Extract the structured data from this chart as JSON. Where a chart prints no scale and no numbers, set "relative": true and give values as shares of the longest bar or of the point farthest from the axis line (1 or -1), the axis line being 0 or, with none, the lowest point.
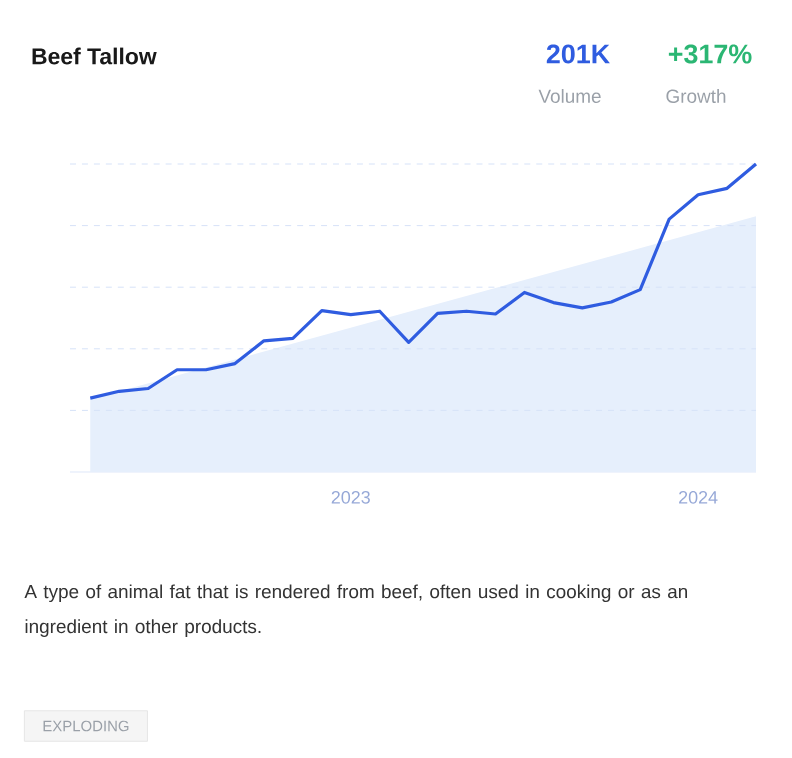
{
  "chart_data": {
    "type": "line",
    "title": "Beef Tallow",
    "relative": true,
    "grid": "y",
    "x": [
      "2022-04",
      "2022-05",
      "2022-06",
      "2022-07",
      "2022-08",
      "2022-09",
      "2022-10",
      "2022-11",
      "2022-12",
      "2023-01",
      "2023-02",
      "2023-03",
      "2023-04",
      "2023-05",
      "2023-06",
      "2023-07",
      "2023-08",
      "2023-09",
      "2023-10",
      "2023-11",
      "2023-12",
      "2024-01",
      "2024-02",
      "2024-03"
    ],
    "xlim": [
      "2022-03-10",
      "2024-03"
    ],
    "xticks": [
      {
        "value": "2023-01",
        "label": "2023"
      },
      {
        "value": "2024-01",
        "label": "2024"
      }
    ],
    "series": [
      {
        "color": "#2f5ce0",
        "values": [
          0.24,
          0.262,
          0.271,
          0.332,
          0.332,
          0.352,
          0.426,
          0.434,
          0.524,
          0.511,
          0.522,
          0.421,
          0.515,
          0.522,
          0.513,
          0.583,
          0.55,
          0.533,
          0.552,
          0.592,
          0.821,
          0.9,
          0.921,
          1.0
        ]
      },
      {
        "type": "area",
        "color": "#e6effc",
        "x": [
          "2022-04",
          "2024-03"
        ],
        "values": [
          0.236,
          0.83
        ]
      }
    ],
    "annotations": [
      "201K",
      "Volume",
      "+317%",
      "Growth",
      "A type of animal fat that is rendered from beef, often used in cooking or as an ingredient in other products.",
      "EXPLODING"
    ]
  }
}
